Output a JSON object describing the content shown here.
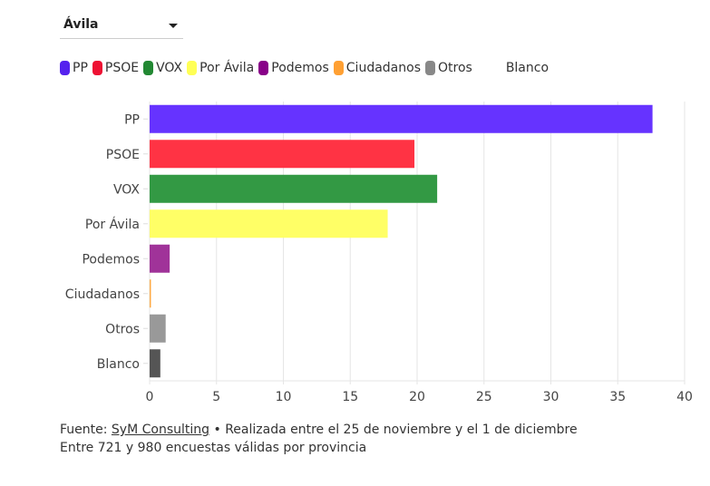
{
  "selector": {
    "value": "Ávila"
  },
  "chart_data": {
    "type": "bar",
    "orientation": "horizontal",
    "categories": [
      "PP",
      "PSOE",
      "VOX",
      "Por Ávila",
      "Podemos",
      "Ciudadanos",
      "Otros",
      "Blanco"
    ],
    "values": [
      37.6,
      19.8,
      21.5,
      17.8,
      1.5,
      0.1,
      1.2,
      0.8
    ],
    "colors": [
      "#6633ff",
      "#ff3344",
      "#339944",
      "#ffff66",
      "#a03399",
      "#ffaa44",
      "#999999",
      "#555555"
    ],
    "legend": [
      {
        "name": "PP",
        "color": "#5522ee"
      },
      {
        "name": "PSOE",
        "color": "#ee1133"
      },
      {
        "name": "VOX",
        "color": "#228833"
      },
      {
        "name": "Por Ávila",
        "color": "#ffff55"
      },
      {
        "name": "Podemos",
        "color": "#880088"
      },
      {
        "name": "Ciudadanos",
        "color": "#ffa033"
      },
      {
        "name": "Otros",
        "color": "#888888"
      },
      {
        "name": "Blanco",
        "color": "#ffffff"
      }
    ],
    "legend_position": "top-left",
    "xlim": [
      0,
      40
    ],
    "xticks": [
      0,
      5,
      10,
      15,
      20,
      25,
      30,
      35,
      40
    ],
    "grid": true
  },
  "footer": {
    "source_prefix": "Fuente: ",
    "source_link": "SyM Consulting",
    "source_suffix": " • Realizada entre el 25 de noviembre y el 1 de diciembre",
    "line2": "Entre 721 y 980 encuestas válidas por provincia"
  }
}
